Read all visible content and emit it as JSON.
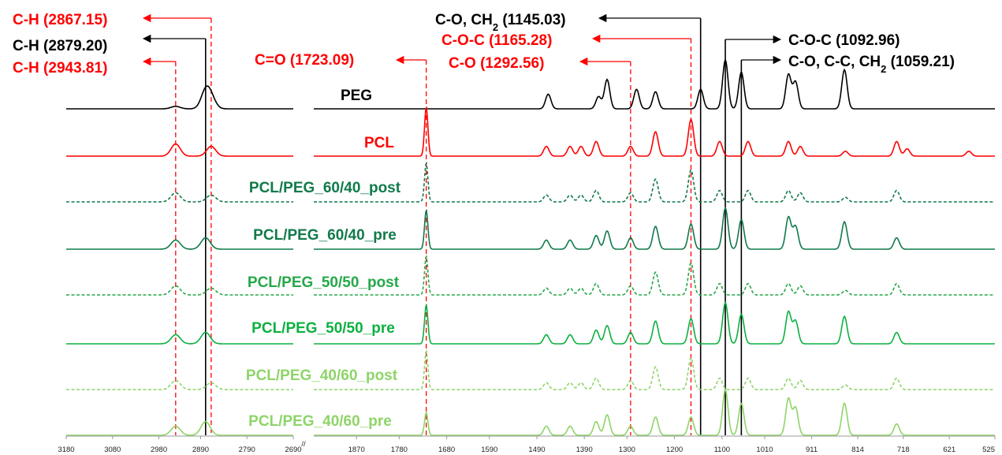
{
  "chart_data": {
    "type": "line",
    "title": "",
    "xlabel": "",
    "ylabel": "",
    "x_axis": {
      "reversed": true,
      "broken": true,
      "segments": [
        {
          "range": [
            3180,
            2690
          ],
          "ticks": [
            "3180",
            "3080",
            "2980",
            "2890",
            "2790",
            "2690"
          ]
        },
        {
          "range": [
            1960,
            525
          ],
          "ticks": [
            "1870",
            "1780",
            "1680",
            "1590",
            "1490",
            "1390",
            "1300",
            "1200",
            "1100",
            "1010",
            "911",
            "814",
            "718",
            "621",
            "525"
          ]
        }
      ],
      "break_mark": "//"
    },
    "series": [
      {
        "name": "PEG",
        "color": "#000000",
        "dashed": false,
        "peaks": [
          [
            2943.81,
            0.05
          ],
          [
            2879.2,
            0.35
          ],
          [
            2867.15,
            0.2
          ],
          [
            1466,
            0.3
          ],
          [
            1360,
            0.25
          ],
          [
            1342,
            0.6
          ],
          [
            1280,
            0.4
          ],
          [
            1240,
            0.35
          ],
          [
            1145.03,
            0.4
          ],
          [
            1092.96,
            1.0
          ],
          [
            1059.21,
            0.75
          ],
          [
            960,
            0.7
          ],
          [
            945,
            0.55
          ],
          [
            842,
            0.8
          ]
        ]
      },
      {
        "name": "PCL",
        "color": "#ff0000",
        "dashed": false,
        "peaks": [
          [
            2943.81,
            0.25
          ],
          [
            2867.15,
            0.2
          ],
          [
            1723.09,
            1.0
          ],
          [
            1470,
            0.2
          ],
          [
            1420,
            0.2
          ],
          [
            1397,
            0.2
          ],
          [
            1365,
            0.3
          ],
          [
            1292.56,
            0.2
          ],
          [
            1240,
            0.5
          ],
          [
            1165.28,
            0.75
          ],
          [
            1105,
            0.3
          ],
          [
            1045,
            0.3
          ],
          [
            960,
            0.3
          ],
          [
            935,
            0.2
          ],
          [
            840,
            0.1
          ],
          [
            732,
            0.3
          ],
          [
            710,
            0.15
          ],
          [
            580,
            0.1
          ]
        ]
      },
      {
        "name": "PCL/PEG_60/40_post",
        "color": "#117a4a",
        "dashed": true,
        "peaks": [
          [
            2943.81,
            0.2
          ],
          [
            2867.15,
            0.15
          ],
          [
            1723.09,
            0.85
          ],
          [
            1470,
            0.15
          ],
          [
            1420,
            0.15
          ],
          [
            1397,
            0.15
          ],
          [
            1365,
            0.25
          ],
          [
            1292.56,
            0.2
          ],
          [
            1240,
            0.5
          ],
          [
            1165.28,
            0.7
          ],
          [
            1105,
            0.25
          ],
          [
            1045,
            0.25
          ],
          [
            960,
            0.25
          ],
          [
            935,
            0.2
          ],
          [
            840,
            0.1
          ],
          [
            732,
            0.25
          ]
        ]
      },
      {
        "name": "PCL/PEG_60/40_pre",
        "color": "#117a4a",
        "dashed": false,
        "peaks": [
          [
            2943.81,
            0.2
          ],
          [
            2879.2,
            0.25
          ],
          [
            1723.09,
            0.85
          ],
          [
            1470,
            0.2
          ],
          [
            1420,
            0.2
          ],
          [
            1365,
            0.3
          ],
          [
            1342,
            0.4
          ],
          [
            1292.56,
            0.25
          ],
          [
            1240,
            0.5
          ],
          [
            1165.28,
            0.55
          ],
          [
            1092.96,
            0.9
          ],
          [
            1059.21,
            0.65
          ],
          [
            960,
            0.7
          ],
          [
            945,
            0.5
          ],
          [
            842,
            0.6
          ],
          [
            732,
            0.25
          ]
        ]
      },
      {
        "name": "PCL/PEG_50/50_post",
        "color": "#26a84a",
        "dashed": true,
        "peaks": [
          [
            2943.81,
            0.2
          ],
          [
            2867.15,
            0.15
          ],
          [
            1723.09,
            0.85
          ],
          [
            1470,
            0.15
          ],
          [
            1420,
            0.15
          ],
          [
            1397,
            0.15
          ],
          [
            1365,
            0.25
          ],
          [
            1292.56,
            0.2
          ],
          [
            1240,
            0.5
          ],
          [
            1165.28,
            0.7
          ],
          [
            1105,
            0.25
          ],
          [
            1045,
            0.25
          ],
          [
            960,
            0.25
          ],
          [
            935,
            0.2
          ],
          [
            840,
            0.1
          ],
          [
            732,
            0.25
          ]
        ]
      },
      {
        "name": "PCL/PEG_50/50_pre",
        "color": "#0cb040",
        "dashed": false,
        "peaks": [
          [
            2943.81,
            0.2
          ],
          [
            2879.2,
            0.25
          ],
          [
            1723.09,
            0.85
          ],
          [
            1470,
            0.2
          ],
          [
            1420,
            0.2
          ],
          [
            1365,
            0.3
          ],
          [
            1342,
            0.4
          ],
          [
            1292.56,
            0.25
          ],
          [
            1240,
            0.5
          ],
          [
            1165.28,
            0.55
          ],
          [
            1092.96,
            0.9
          ],
          [
            1059.21,
            0.65
          ],
          [
            960,
            0.7
          ],
          [
            945,
            0.5
          ],
          [
            842,
            0.6
          ],
          [
            732,
            0.25
          ]
        ]
      },
      {
        "name": "PCL/PEG_40/60_post",
        "color": "#8ed468",
        "dashed": true,
        "peaks": [
          [
            2943.81,
            0.2
          ],
          [
            2867.15,
            0.15
          ],
          [
            1723.09,
            0.85
          ],
          [
            1470,
            0.15
          ],
          [
            1420,
            0.15
          ],
          [
            1397,
            0.15
          ],
          [
            1365,
            0.25
          ],
          [
            1292.56,
            0.2
          ],
          [
            1240,
            0.5
          ],
          [
            1165.28,
            0.7
          ],
          [
            1105,
            0.25
          ],
          [
            1045,
            0.25
          ],
          [
            960,
            0.25
          ],
          [
            935,
            0.2
          ],
          [
            840,
            0.1
          ],
          [
            732,
            0.25
          ]
        ]
      },
      {
        "name": "PCL/PEG_40/60_pre",
        "color": "#8ed468",
        "dashed": false,
        "peaks": [
          [
            2943.81,
            0.2
          ],
          [
            2879.2,
            0.3
          ],
          [
            1723.09,
            0.5
          ],
          [
            1470,
            0.2
          ],
          [
            1420,
            0.2
          ],
          [
            1365,
            0.3
          ],
          [
            1342,
            0.45
          ],
          [
            1292.56,
            0.2
          ],
          [
            1240,
            0.4
          ],
          [
            1165.28,
            0.4
          ],
          [
            1092.96,
            1.0
          ],
          [
            1059.21,
            0.7
          ],
          [
            960,
            0.8
          ],
          [
            945,
            0.6
          ],
          [
            842,
            0.7
          ],
          [
            732,
            0.25
          ]
        ]
      }
    ],
    "annotations": [
      {
        "id": "ch-2867",
        "parts": [
          {
            "t": "C-H ("
          },
          {
            "t": "2867.15"
          },
          {
            "t": ")"
          }
        ],
        "color": "#ff0000",
        "x": 2867.15,
        "line": "dashed",
        "arrow": "left"
      },
      {
        "id": "ch-2879",
        "parts": [
          {
            "t": "C-H (2879.20)"
          }
        ],
        "color": "#000000",
        "x": 2879.2,
        "line": "solid",
        "arrow": "left"
      },
      {
        "id": "ch-2943",
        "parts": [
          {
            "t": "C-H ("
          },
          {
            "t": "2943.81"
          },
          {
            "t": ")"
          }
        ],
        "color": "#ff0000",
        "x": 2943.81,
        "line": "dashed",
        "arrow": "left"
      },
      {
        "id": "co-1723",
        "parts": [
          {
            "t": "C=O ("
          },
          {
            "t": "1723.09"
          },
          {
            "t": ")"
          }
        ],
        "color": "#ff0000",
        "x": 1723.09,
        "line": "dashed",
        "arrow": "left"
      },
      {
        "id": "co-1145",
        "parts": [
          {
            "t": "C-O, CH"
          },
          {
            "t": "2",
            "sub": true
          },
          {
            "t": " (1145.03)"
          }
        ],
        "color": "#000000",
        "x": 1145.03,
        "line": "solid",
        "arrow": "left"
      },
      {
        "id": "coc-1165",
        "parts": [
          {
            "t": "C-O-C (1165.28)"
          }
        ],
        "color": "#ff0000",
        "x": 1165.28,
        "line": "dashed",
        "arrow": "left"
      },
      {
        "id": "co-1292",
        "parts": [
          {
            "t": "C-O (1292.56)"
          }
        ],
        "color": "#ff0000",
        "x": 1292.56,
        "line": "dashed",
        "arrow": "left"
      },
      {
        "id": "coc-1092",
        "parts": [
          {
            "t": "C-O-C (1092.96)"
          }
        ],
        "color": "#000000",
        "x": 1092.96,
        "line": "solid",
        "arrow": "right"
      },
      {
        "id": "co-1059",
        "parts": [
          {
            "t": "C-O, C-C, CH"
          },
          {
            "t": "2",
            "sub": true
          },
          {
            "t": " (1059.21)"
          }
        ],
        "color": "#000000",
        "x": 1059.21,
        "line": "solid",
        "arrow": "right"
      }
    ]
  }
}
